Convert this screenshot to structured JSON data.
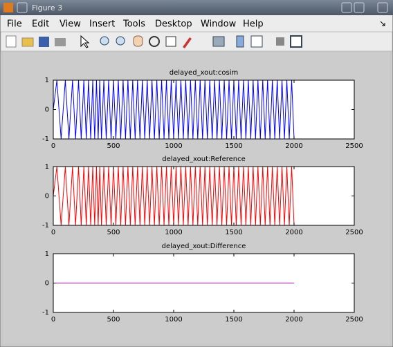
{
  "window": {
    "title": "Figure 3"
  },
  "menu": [
    "File",
    "Edit",
    "View",
    "Insert",
    "Tools",
    "Desktop",
    "Window",
    "Help"
  ],
  "chart_data": [
    {
      "type": "line",
      "title": "delayed_xout:cosim",
      "x": [
        0,
        30,
        65,
        100,
        130,
        160,
        185,
        210,
        232,
        254,
        274,
        293,
        311,
        328,
        344,
        359,
        373,
        386,
        400,
        420,
        440,
        460,
        480,
        500,
        520,
        540,
        560,
        580,
        600,
        620,
        640,
        660,
        680,
        700,
        720,
        740,
        760,
        780,
        800,
        820,
        840,
        860,
        880,
        900,
        920,
        940,
        960,
        980,
        1000,
        1020,
        1040,
        1060,
        1080,
        1100,
        1120,
        1140,
        1160,
        1180,
        1200,
        1220,
        1240,
        1260,
        1280,
        1300,
        1320,
        1340,
        1360,
        1380,
        1400,
        1420,
        1440,
        1460,
        1480,
        1500,
        1520,
        1540,
        1560,
        1580,
        1600,
        1620,
        1640,
        1660,
        1680,
        1700,
        1720,
        1740,
        1760,
        1780,
        1800,
        1820,
        1840,
        1860,
        1880,
        1900,
        1920,
        1940,
        1960,
        1980,
        2000
      ],
      "series": [
        {
          "name": "cosim",
          "color": "#0000ff",
          "values": [
            0,
            1,
            -1,
            1,
            -1,
            1,
            -1,
            1,
            -1,
            1,
            -1,
            1,
            -1,
            1,
            -1,
            1,
            -1,
            1,
            -1,
            1,
            -1,
            1,
            -1,
            1,
            -1,
            1,
            -1,
            1,
            -1,
            1,
            -1,
            1,
            -1,
            1,
            -1,
            1,
            -1,
            1,
            -1,
            1,
            -1,
            1,
            -1,
            1,
            -1,
            1,
            -1,
            1,
            -1,
            1,
            -1,
            1,
            -1,
            1,
            -1,
            1,
            -1,
            1,
            -1,
            1,
            -1,
            1,
            -1,
            1,
            -1,
            1,
            -1,
            1,
            -1,
            1,
            -1,
            1,
            -1,
            1,
            -1,
            1,
            -1,
            1,
            -1,
            1,
            -1,
            1,
            -1,
            1,
            -1,
            1,
            -1,
            1,
            -1,
            1,
            -1,
            1,
            -1,
            1,
            -1,
            1,
            -1,
            1,
            -1
          ]
        }
      ],
      "xlim": [
        0,
        2500
      ],
      "xticks": [
        0,
        500,
        1000,
        1500,
        2000,
        2500
      ],
      "ylim": [
        -1,
        1
      ],
      "yticks": [
        -1,
        0,
        1
      ]
    },
    {
      "type": "line",
      "title": "delayed_xout:Reference",
      "x": [
        0,
        30,
        65,
        100,
        130,
        160,
        185,
        210,
        232,
        254,
        274,
        293,
        311,
        328,
        344,
        359,
        373,
        386,
        400,
        420,
        440,
        460,
        480,
        500,
        520,
        540,
        560,
        580,
        600,
        620,
        640,
        660,
        680,
        700,
        720,
        740,
        760,
        780,
        800,
        820,
        840,
        860,
        880,
        900,
        920,
        940,
        960,
        980,
        1000,
        1020,
        1040,
        1060,
        1080,
        1100,
        1120,
        1140,
        1160,
        1180,
        1200,
        1220,
        1240,
        1260,
        1280,
        1300,
        1320,
        1340,
        1360,
        1380,
        1400,
        1420,
        1440,
        1460,
        1480,
        1500,
        1520,
        1540,
        1560,
        1580,
        1600,
        1620,
        1640,
        1660,
        1680,
        1700,
        1720,
        1740,
        1760,
        1780,
        1800,
        1820,
        1840,
        1860,
        1880,
        1900,
        1920,
        1940,
        1960,
        1980,
        2000
      ],
      "series": [
        {
          "name": "Reference",
          "color": "#ff0000",
          "values": [
            0,
            1,
            -1,
            1,
            -1,
            1,
            -1,
            1,
            -1,
            1,
            -1,
            1,
            -1,
            1,
            -1,
            1,
            -1,
            1,
            -1,
            1,
            -1,
            1,
            -1,
            1,
            -1,
            1,
            -1,
            1,
            -1,
            1,
            -1,
            1,
            -1,
            1,
            -1,
            1,
            -1,
            1,
            -1,
            1,
            -1,
            1,
            -1,
            1,
            -1,
            1,
            -1,
            1,
            -1,
            1,
            -1,
            1,
            -1,
            1,
            -1,
            1,
            -1,
            1,
            -1,
            1,
            -1,
            1,
            -1,
            1,
            -1,
            1,
            -1,
            1,
            -1,
            1,
            -1,
            1,
            -1,
            1,
            -1,
            1,
            -1,
            1,
            -1,
            1,
            -1,
            1,
            -1,
            1,
            -1,
            1,
            -1,
            1,
            -1,
            1,
            -1,
            1,
            -1,
            1,
            -1,
            1,
            -1,
            1,
            -1
          ]
        }
      ],
      "xlim": [
        0,
        2500
      ],
      "xticks": [
        0,
        500,
        1000,
        1500,
        2000,
        2500
      ],
      "ylim": [
        -1,
        1
      ],
      "yticks": [
        -1,
        0,
        1
      ]
    },
    {
      "type": "line",
      "title": "delayed_xout:Difference",
      "x": [
        0,
        2000
      ],
      "series": [
        {
          "name": "Difference",
          "color": "#cc00cc",
          "values": [
            0,
            0
          ]
        }
      ],
      "xlim": [
        0,
        2500
      ],
      "xticks": [
        0,
        500,
        1000,
        1500,
        2000,
        2500
      ],
      "ylim": [
        -1,
        1
      ],
      "yticks": [
        -1,
        0,
        1
      ]
    }
  ]
}
